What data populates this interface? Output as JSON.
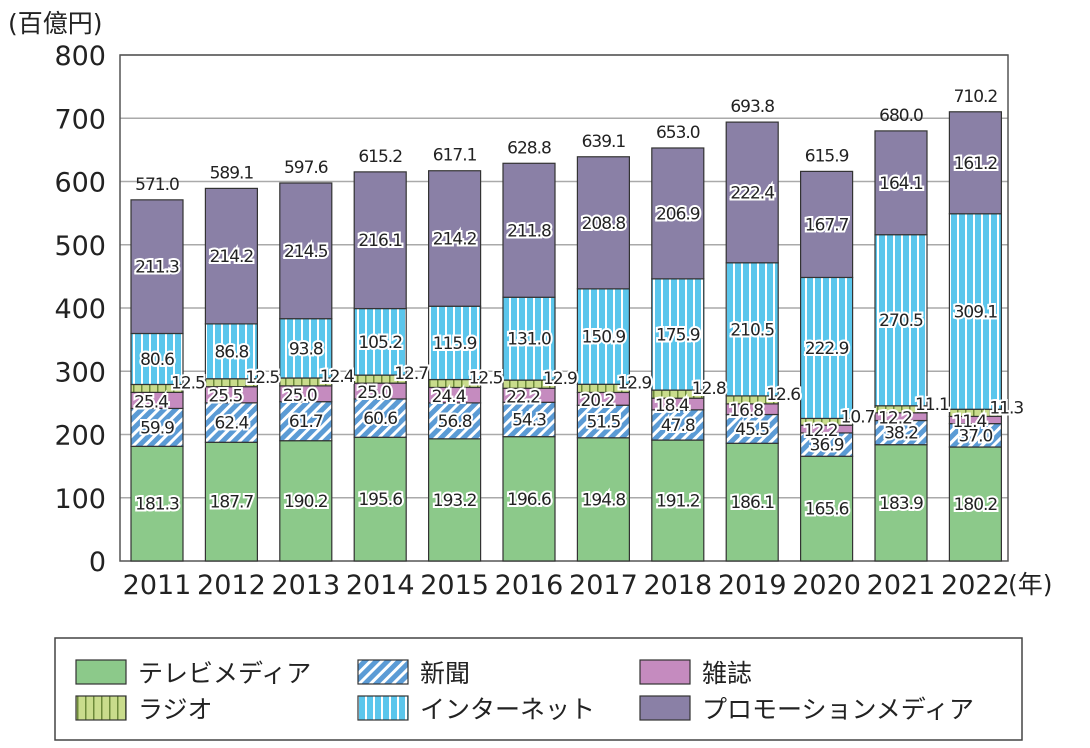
{
  "chart_data": {
    "type": "bar",
    "stacked": true,
    "unit_label": "(百億円)",
    "x_unit": "(年)",
    "categories": [
      "2011",
      "2012",
      "2013",
      "2014",
      "2015",
      "2016",
      "2017",
      "2018",
      "2019",
      "2020",
      "2021",
      "2022"
    ],
    "ylim": [
      0,
      800
    ],
    "yticks": [
      0,
      100,
      200,
      300,
      400,
      500,
      600,
      700,
      800
    ],
    "grid": true,
    "legend_position": "bottom",
    "series": [
      {
        "name": "テレビメディア",
        "color": "#8cc98a",
        "pattern": "solid",
        "values": [
          181.3,
          187.7,
          190.2,
          195.6,
          193.2,
          196.6,
          194.8,
          191.2,
          186.1,
          165.6,
          183.9,
          180.2
        ]
      },
      {
        "name": "新聞",
        "color": "#5b9bd5",
        "pattern": "diagonal",
        "values": [
          59.9,
          62.4,
          61.7,
          60.6,
          56.8,
          54.3,
          51.5,
          47.8,
          45.5,
          36.9,
          38.2,
          37.0
        ]
      },
      {
        "name": "雑誌",
        "color": "#c58bbf",
        "pattern": "solid",
        "values": [
          25.4,
          25.5,
          25.0,
          25.0,
          24.4,
          22.2,
          20.2,
          18.4,
          16.8,
          12.2,
          12.2,
          11.4
        ]
      },
      {
        "name": "ラジオ",
        "color": "#c9dc8c",
        "pattern": "vertical",
        "values": [
          12.5,
          12.5,
          12.4,
          12.7,
          12.5,
          12.9,
          12.9,
          12.8,
          12.6,
          10.7,
          11.1,
          11.3
        ]
      },
      {
        "name": "インターネット",
        "color": "#5bc6ec",
        "pattern": "vertical",
        "values": [
          80.6,
          86.8,
          93.8,
          105.2,
          115.9,
          131.0,
          150.9,
          175.9,
          210.5,
          222.9,
          270.5,
          309.1
        ]
      },
      {
        "name": "プロモーションメディア",
        "color": "#8a80a6",
        "pattern": "solid",
        "values": [
          211.3,
          214.2,
          214.5,
          216.1,
          214.2,
          211.8,
          208.8,
          206.9,
          222.4,
          167.7,
          164.1,
          161.2
        ]
      }
    ],
    "totals": [
      571.0,
      589.1,
      597.6,
      615.2,
      617.1,
      628.8,
      639.1,
      653.0,
      693.8,
      615.9,
      680.0,
      710.2
    ]
  }
}
